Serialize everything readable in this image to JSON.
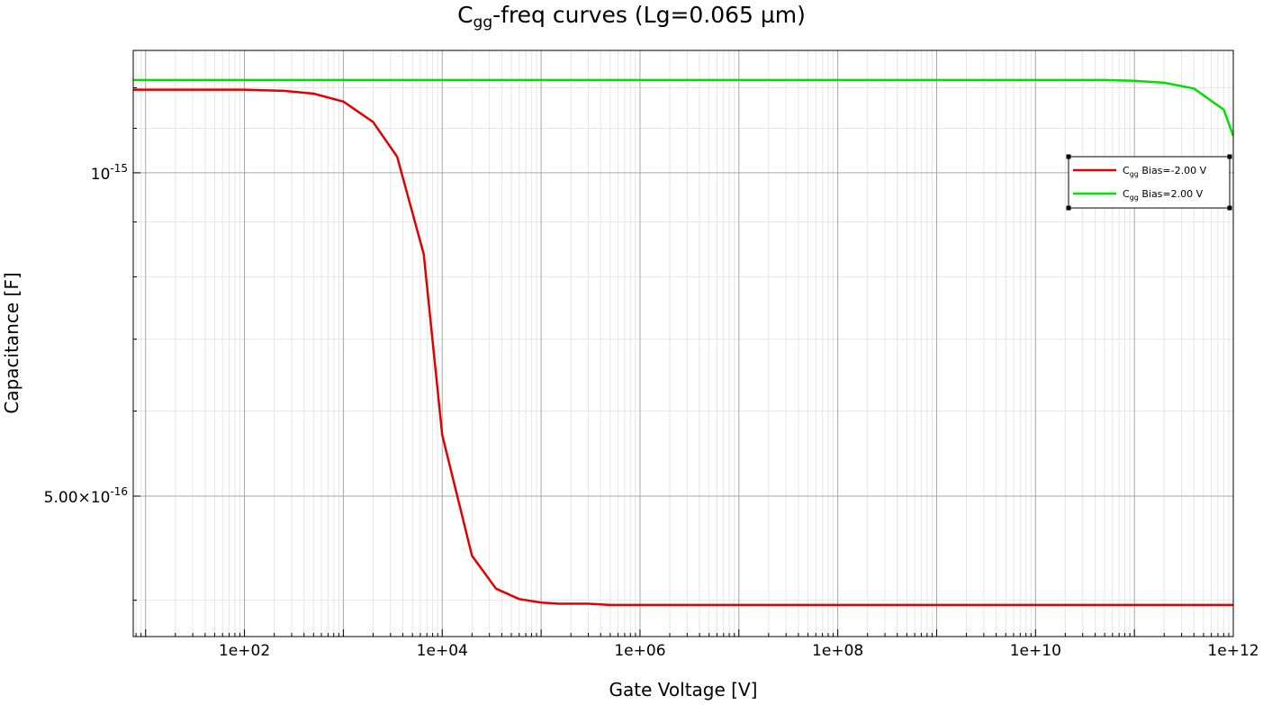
{
  "title_main": "C",
  "title_sub": "gg",
  "title_rest": "-freq curves (Lg=0.065 µm)",
  "chart_data": {
    "type": "line",
    "title": "Cgg-freq curves (Lg=0.065 µm)",
    "xlabel": "Gate Voltage [V]",
    "ylabel": "Capacitance [F]",
    "xscale": "log",
    "yscale": "log",
    "xlim": [
      7.5,
      1000000000000.0
    ],
    "ylim": [
      3.7e-16,
      1.3e-15
    ],
    "grid": true,
    "legend_position": "upper-right",
    "x_tick_labels": [
      "1e+02",
      "1e+04",
      "1e+06",
      "1e+08",
      "1e+10",
      "1e+12"
    ],
    "y_tick_labels": [
      {
        "base": "10",
        "exp": "-15",
        "value": 1e-15
      },
      {
        "base": "5.00×10",
        "exp": "-16",
        "value": 5e-16
      }
    ],
    "series": [
      {
        "name": "Cgg Bias=-2.00 V",
        "legend_main": "C",
        "legend_sub": "gg",
        "legend_rest": " Bias=-2.00 V",
        "color": "#e00000",
        "x": [
          7.5,
          100,
          130,
          250,
          500,
          1000,
          2000,
          3500,
          6500,
          10000,
          20000,
          35000,
          60000,
          100000,
          150000,
          300000,
          500000,
          1000000,
          10000000.0,
          100000000.0,
          1000000000.0,
          10000000000.0,
          100000000000.0,
          1000000000000.0
        ],
        "y": [
          1.195e-15,
          1.195e-15,
          1.194e-15,
          1.192e-15,
          1.185e-15,
          1.165e-15,
          1.115e-15,
          1.035e-15,
          8.4e-16,
          5.7e-16,
          4.4e-16,
          4.1e-16,
          4.01e-16,
          3.98e-16,
          3.97e-16,
          3.97e-16,
          3.96e-16,
          3.96e-16,
          3.96e-16,
          3.96e-16,
          3.96e-16,
          3.96e-16,
          3.96e-16,
          3.96e-16
        ]
      },
      {
        "name": "Cgg Bias=2.00 V",
        "legend_main": "C",
        "legend_sub": "gg",
        "legend_rest": " Bias=2.00 V",
        "color": "#00e000",
        "x": [
          7.5,
          1000000.0,
          100000000.0,
          10000000000.0,
          50000000000.0,
          100000000000.0,
          200000000000.0,
          400000000000.0,
          800000000000.0,
          1000000000000.0
        ],
        "y": [
          1.22e-15,
          1.22e-15,
          1.22e-15,
          1.22e-15,
          1.22e-15,
          1.218e-15,
          1.213e-15,
          1.198e-15,
          1.145e-15,
          1.082e-15
        ]
      }
    ]
  }
}
